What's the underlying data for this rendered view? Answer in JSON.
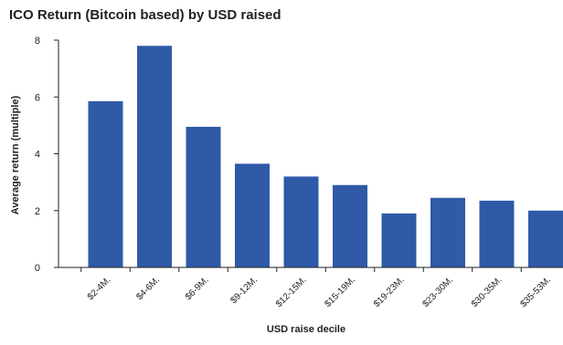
{
  "chart_data": {
    "type": "bar",
    "title": "ICO Return (Bitcoin based) by USD raised",
    "xlabel": "USD raise decile",
    "ylabel": "Average return (multiple)",
    "categories": [
      "$2-4M.",
      "$4-6M.",
      "$6-9M.",
      "$9-12M.",
      "$12-15M.",
      "$15-19M.",
      "$19-23M.",
      "$23-30M.",
      "$30-35M.",
      "$35-53M."
    ],
    "values": [
      5.85,
      7.8,
      4.95,
      3.65,
      3.2,
      2.9,
      1.9,
      2.45,
      2.35,
      2.0
    ],
    "ylim": [
      0,
      8
    ],
    "yticks": [
      0,
      2,
      4,
      6,
      8
    ],
    "grid": false,
    "legend": "none",
    "bar_color": "#2f5aa8",
    "axis_color": "#222222"
  }
}
